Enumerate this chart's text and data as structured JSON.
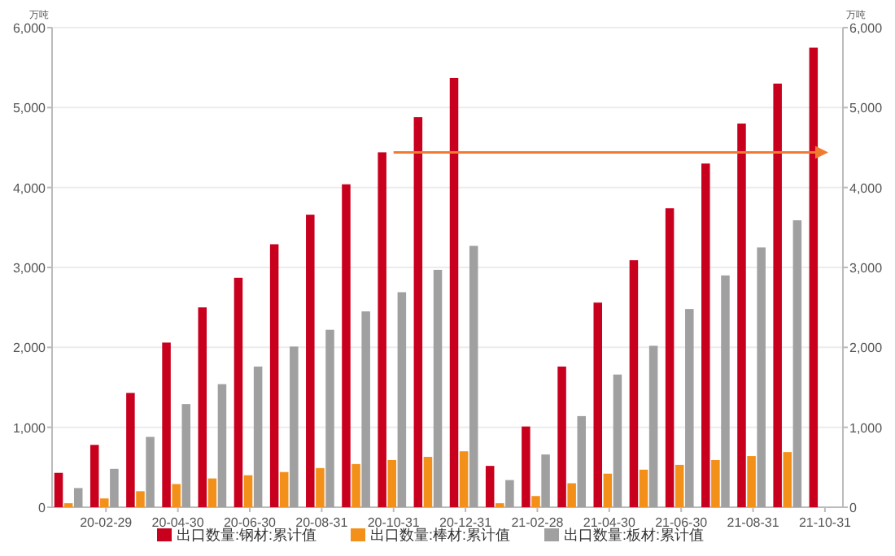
{
  "chart_data": {
    "type": "bar",
    "ylabel": "万吨",
    "y2label": "万吨",
    "categories": [
      null,
      "20-02-29",
      null,
      "20-04-30",
      null,
      "20-06-30",
      null,
      "20-08-31",
      null,
      "20-10-31",
      null,
      "20-12-31",
      null,
      "21-02-28",
      null,
      "21-04-30",
      null,
      "21-06-30",
      null,
      "21-08-31",
      null,
      "21-10-31"
    ],
    "series": [
      {
        "name": "出口数量:钢材:累计值",
        "color": "#c8001e",
        "values": [
          430,
          780,
          1430,
          2060,
          2500,
          2870,
          3290,
          3660,
          4040,
          4440,
          4880,
          5370,
          517,
          1010,
          1760,
          2560,
          3090,
          3740,
          4300,
          4800,
          5300,
          5750
        ]
      },
      {
        "name": "出口数量:棒材:累计值",
        "color": "#f39019",
        "values": [
          50,
          110,
          200,
          290,
          360,
          400,
          440,
          490,
          540,
          590,
          630,
          700,
          50,
          140,
          300,
          420,
          470,
          530,
          590,
          640,
          690,
          null
        ]
      },
      {
        "name": "出口数量:板材:累计值",
        "color": "#a0a0a0",
        "values": [
          240,
          480,
          880,
          1290,
          1540,
          1760,
          2010,
          2220,
          2450,
          2690,
          2970,
          3270,
          340,
          660,
          1140,
          1660,
          2020,
          2480,
          2900,
          3250,
          3590,
          null
        ]
      },
      {
        "type": "line",
        "color": "#f07a30",
        "values": [
          null,
          null,
          null,
          null,
          null,
          null,
          null,
          null,
          null,
          4440,
          4440,
          4440,
          4440,
          4440,
          4440,
          4440,
          4440,
          4440,
          4440,
          4440,
          4440,
          4440
        ]
      }
    ],
    "ylim": [
      0,
      6000
    ],
    "yticks": [
      0,
      {
        "value": 1000,
        "label": "1,000"
      },
      {
        "value": 2000,
        "label": "2,000"
      },
      {
        "value": 3000,
        "label": "3,000"
      },
      {
        "value": 4000,
        "label": "4,000"
      },
      {
        "value": 5000,
        "label": "5,000"
      },
      {
        "value": 6000,
        "label": "6,000"
      }
    ],
    "y2lim": [
      0,
      6000
    ],
    "y2ticks": [
      0,
      {
        "value": 1000,
        "label": "1,000"
      },
      {
        "value": 2000,
        "label": "2,000"
      },
      {
        "value": 3000,
        "label": "3,000"
      },
      {
        "value": 4000,
        "label": "4,000"
      },
      {
        "value": 5000,
        "label": "5,000"
      },
      {
        "value": 6000,
        "label": "6,000"
      }
    ],
    "grid": "y",
    "legend": "bottom"
  }
}
